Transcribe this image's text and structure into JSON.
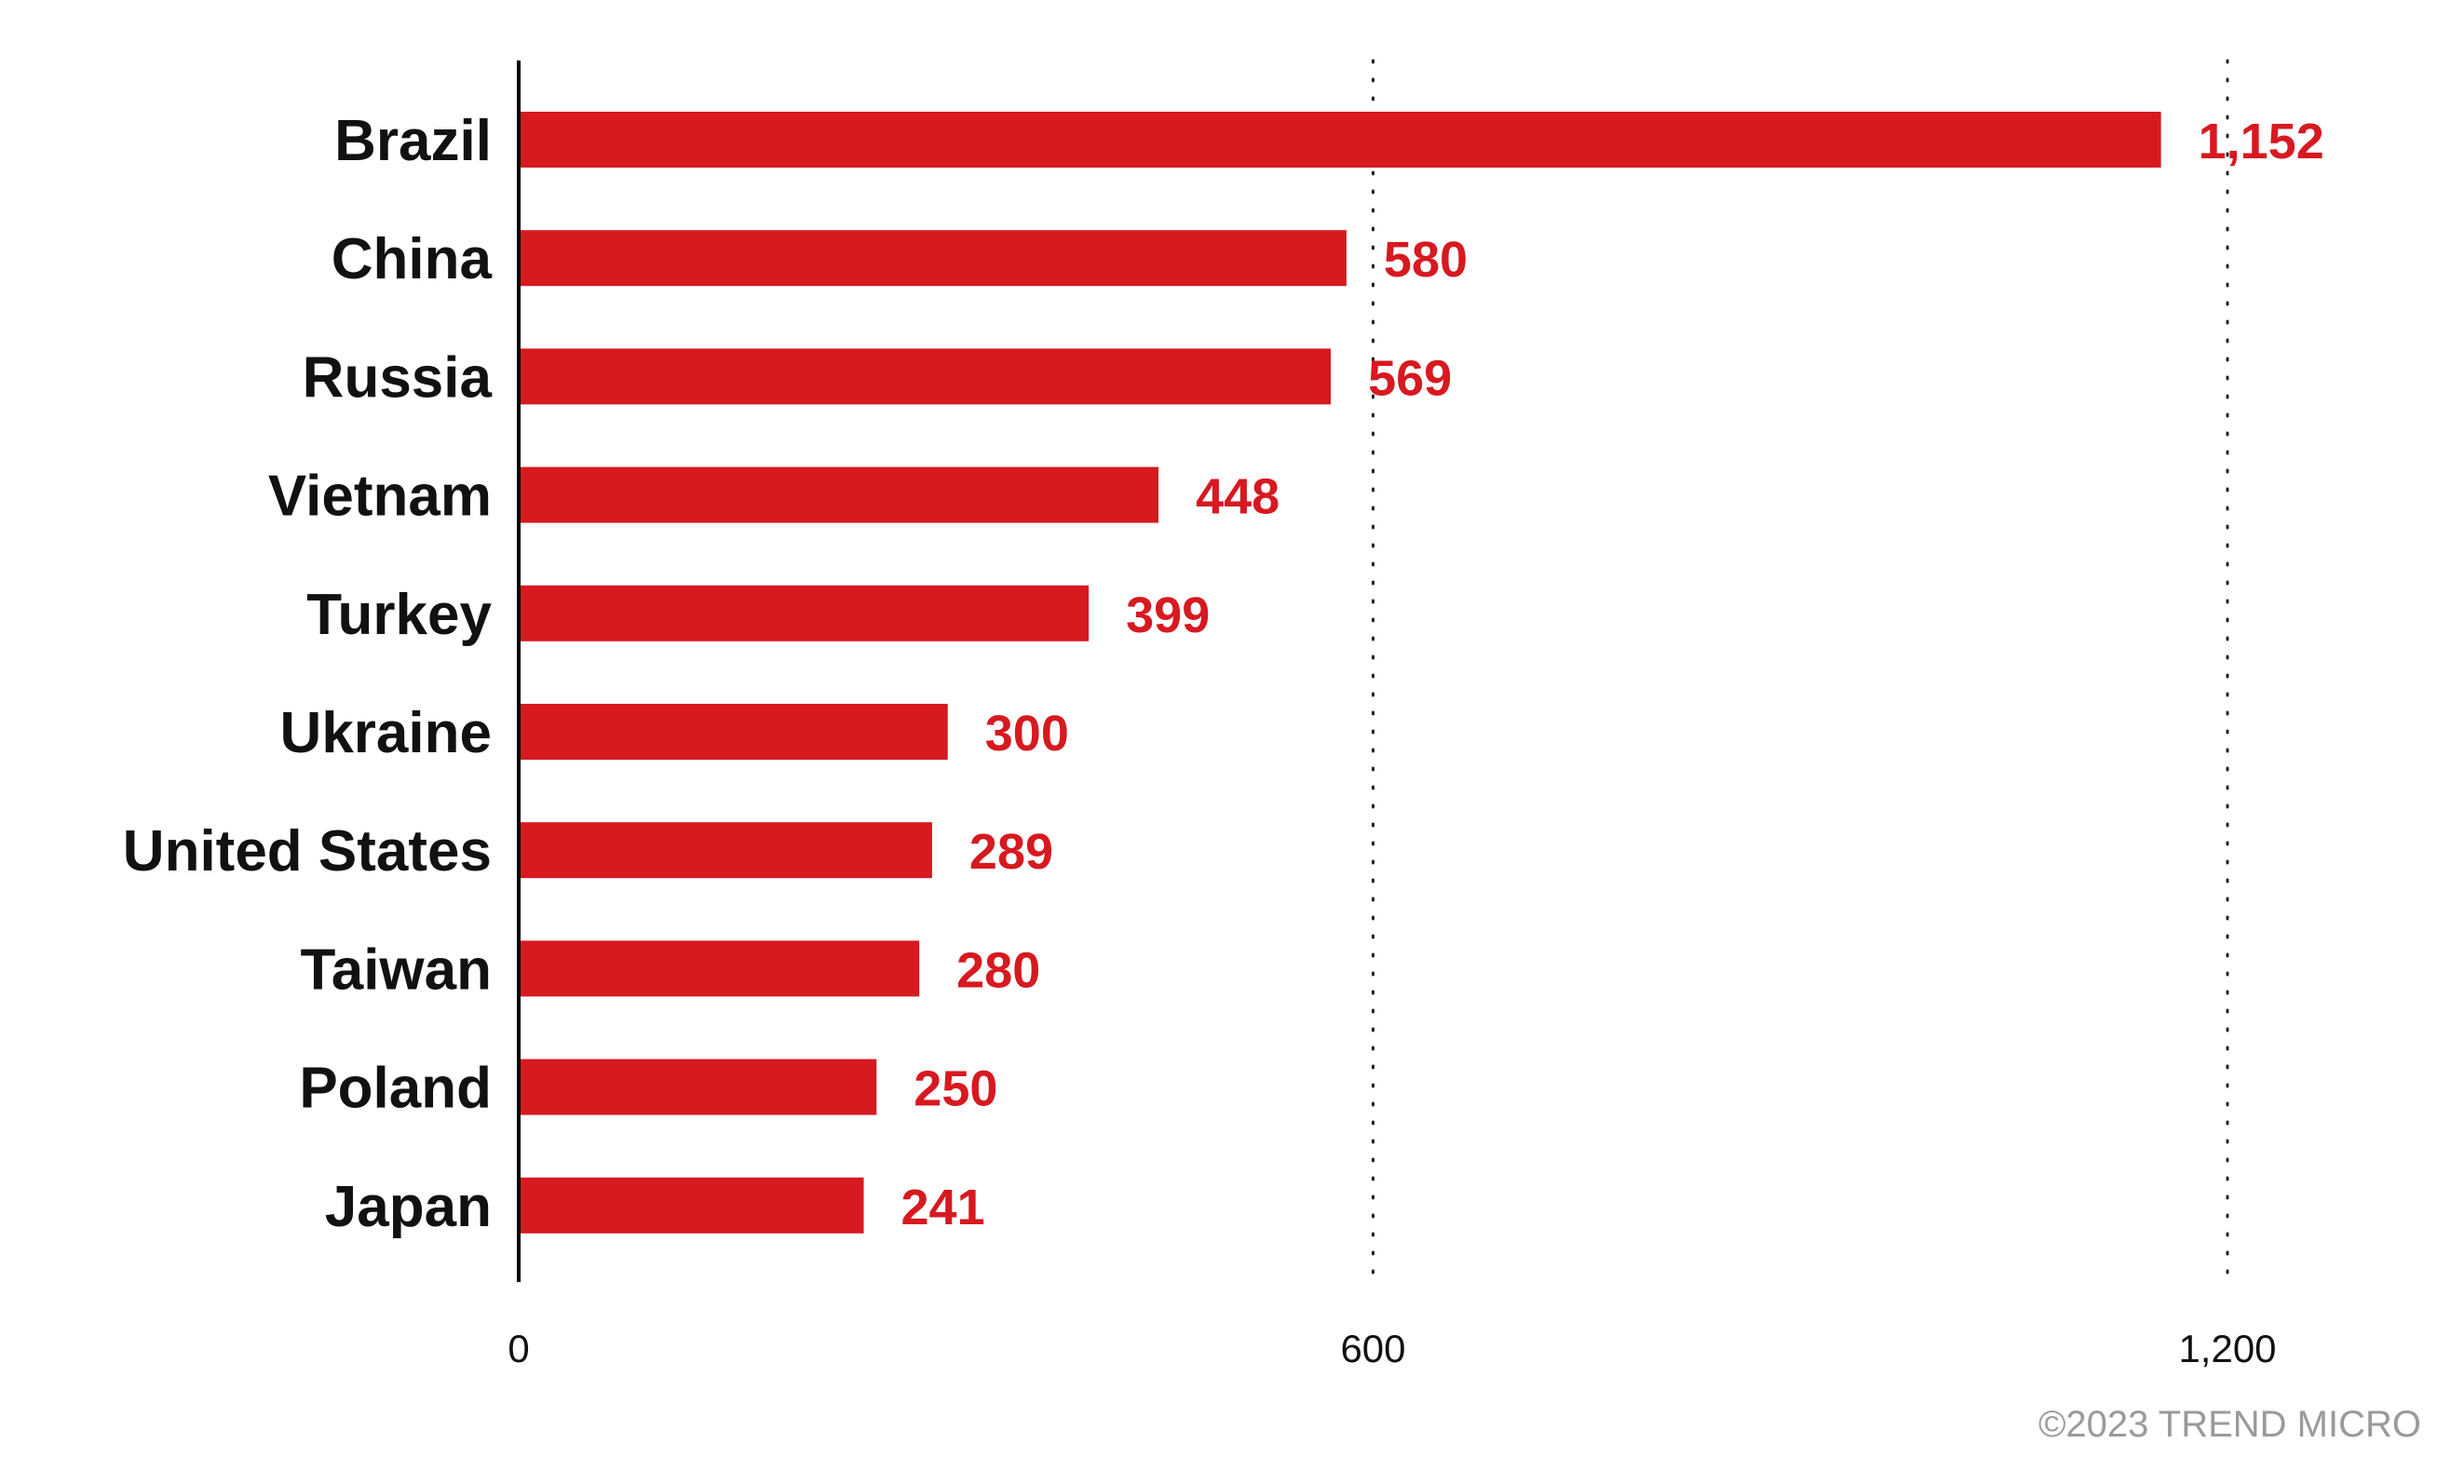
{
  "chart_data": {
    "type": "bar",
    "orientation": "horizontal",
    "categories": [
      "Brazil",
      "China",
      "Russia",
      "Vietnam",
      "Turkey",
      "Ukraine",
      "United States",
      "Taiwan",
      "Poland",
      "Japan"
    ],
    "values": [
      1152,
      580,
      569,
      448,
      399,
      300,
      289,
      280,
      250,
      241
    ],
    "value_labels": [
      "1,152",
      "580",
      "569",
      "448",
      "399",
      "300",
      "289",
      "280",
      "250",
      "241"
    ],
    "xlim": [
      0,
      1200
    ],
    "x_ticks": [
      0,
      600,
      1200
    ],
    "x_tick_labels": [
      "0",
      "600",
      "1,200"
    ],
    "grid": "dotted vertical at 600 and 1,200",
    "title": "",
    "xlabel": "",
    "ylabel": "",
    "bar_color": "#d71920",
    "value_label_color": "#d71920"
  },
  "footer": {
    "copyright": "©2023 TREND MICRO"
  }
}
